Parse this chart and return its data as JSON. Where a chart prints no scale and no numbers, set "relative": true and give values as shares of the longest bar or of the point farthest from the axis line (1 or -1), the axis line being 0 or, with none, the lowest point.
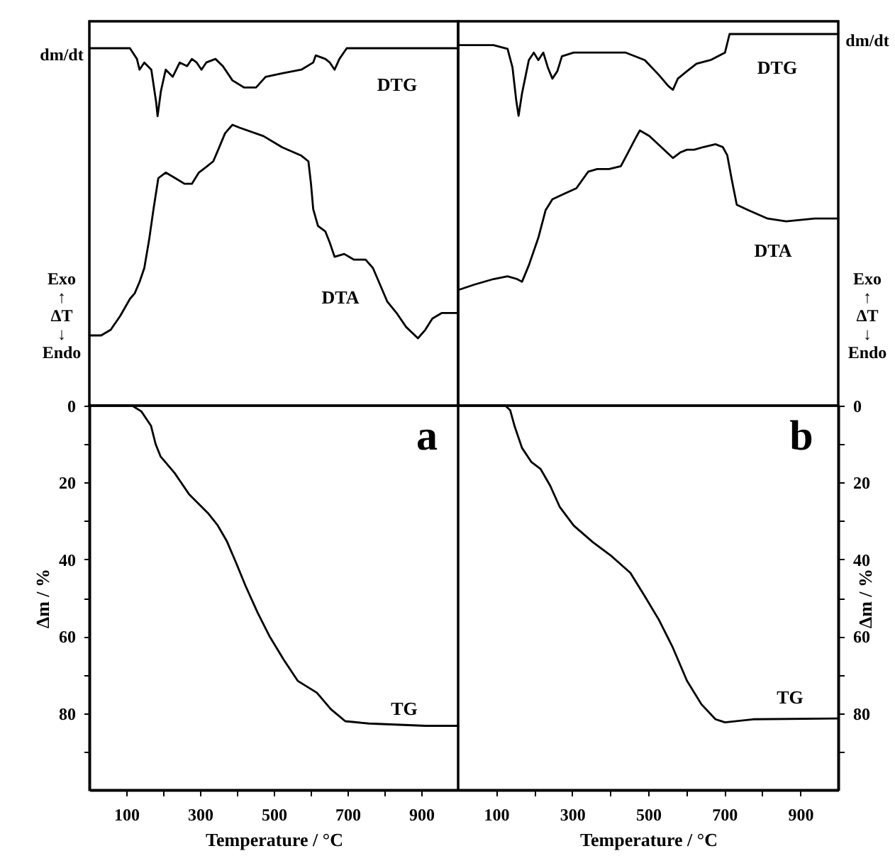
{
  "chart_data": [
    {
      "type": "line",
      "relative": true,
      "xlim": [
        0,
        1000
      ],
      "tick_labels": false,
      "ylabel": "dm/dt",
      "series": [
        {
          "name": "DTG",
          "color": "#000000",
          "x": [
            0,
            110,
            129,
            136,
            149,
            168,
            181,
            185,
            194,
            207,
            226,
            245,
            265,
            278,
            291,
            304,
            317,
            342,
            362,
            388,
            420,
            452,
            478,
            523,
            575,
            607,
            614,
            640,
            652,
            665,
            678,
            698,
            1000
          ],
          "values": [
            1,
            1,
            0.97,
            0.94,
            0.96,
            0.94,
            0.85,
            0.81,
            0.88,
            0.94,
            0.92,
            0.96,
            0.95,
            0.97,
            0.96,
            0.94,
            0.96,
            0.97,
            0.95,
            0.91,
            0.89,
            0.89,
            0.92,
            0.93,
            0.94,
            0.96,
            0.98,
            0.97,
            0.96,
            0.94,
            0.97,
            1,
            1
          ]
        }
      ]
    },
    {
      "type": "line",
      "relative": true,
      "xlim": [
        0,
        1000
      ],
      "tick_labels": false,
      "ylabel": "Exo ↑ ΔT ↓ Endo",
      "series": [
        {
          "name": "DTA",
          "color": "#000000",
          "x": [
            0,
            32,
            58,
            84,
            110,
            123,
            136,
            149,
            162,
            174,
            187,
            207,
            233,
            258,
            278,
            297,
            317,
            336,
            349,
            368,
            388,
            407,
            472,
            523,
            575,
            594,
            601,
            607,
            620,
            640,
            652,
            665,
            691,
            717,
            749,
            769,
            782,
            808,
            833,
            859,
            891,
            911,
            930,
            956,
            1000
          ],
          "values": [
            0.25,
            0.25,
            0.27,
            0.32,
            0.38,
            0.4,
            0.44,
            0.49,
            0.59,
            0.7,
            0.81,
            0.83,
            0.81,
            0.79,
            0.79,
            0.83,
            0.85,
            0.87,
            0.91,
            0.97,
            1,
            0.99,
            0.96,
            0.92,
            0.89,
            0.87,
            0.79,
            0.7,
            0.64,
            0.62,
            0.58,
            0.53,
            0.54,
            0.52,
            0.52,
            0.49,
            0.45,
            0.37,
            0.33,
            0.28,
            0.24,
            0.27,
            0.31,
            0.33,
            0.33
          ]
        }
      ]
    },
    {
      "type": "line",
      "xlim": [
        0,
        1000
      ],
      "xticks": [
        100,
        {
          "value": 200,
          "label": null
        },
        300,
        {
          "value": 400,
          "label": null
        },
        500,
        {
          "value": 600,
          "label": null
        },
        700,
        {
          "value": 800,
          "label": null
        },
        900
      ],
      "ylim": [
        100,
        0
      ],
      "yticks": [
        0,
        {
          "value": 10,
          "label": null
        },
        20,
        {
          "value": 30,
          "label": null
        },
        40,
        {
          "value": 50,
          "label": null
        },
        60,
        {
          "value": 70,
          "label": null
        },
        80,
        {
          "value": 90,
          "label": null
        }
      ],
      "xlabel": "Temperature / °C",
      "ylabel": "Δm / %",
      "annotations": [
        "a"
      ],
      "series": [
        {
          "name": "TG",
          "color": "#000000",
          "x": [
            0,
            116,
            141,
            167,
            180,
            193,
            231,
            270,
            321,
            347,
            373,
            398,
            424,
            456,
            488,
            527,
            565,
            617,
            655,
            694,
            758,
            912,
            1000
          ],
          "values": [
            0,
            0,
            1.5,
            5.2,
            10.1,
            13.2,
            17.5,
            23,
            27.9,
            31,
            35.3,
            40.9,
            47,
            53.8,
            59.9,
            66.1,
            71.6,
            74.7,
            79,
            82.1,
            82.7,
            83.3,
            83.3
          ]
        }
      ]
    },
    {
      "type": "line",
      "relative": true,
      "xlim": [
        0,
        1000
      ],
      "tick_labels": false,
      "ylabel": "dm/dt",
      "series": [
        {
          "name": "DTG",
          "color": "#000000",
          "x": [
            0,
            93,
            130,
            143,
            153,
            159,
            168,
            178,
            186,
            199,
            211,
            224,
            236,
            248,
            261,
            273,
            304,
            366,
            441,
            491,
            528,
            553,
            565,
            578,
            602,
            627,
            664,
            702,
            714,
            739,
            838,
            1000
          ],
          "values": [
            0.97,
            0.97,
            0.96,
            0.91,
            0.82,
            0.78,
            0.84,
            0.89,
            0.93,
            0.95,
            0.93,
            0.95,
            0.91,
            0.88,
            0.9,
            0.94,
            0.95,
            0.95,
            0.95,
            0.93,
            0.89,
            0.86,
            0.85,
            0.88,
            0.9,
            0.92,
            0.93,
            0.95,
            1,
            1,
            1,
            1
          ]
        }
      ]
    },
    {
      "type": "line",
      "relative": true,
      "xlim": [
        0,
        1000
      ],
      "tick_labels": false,
      "ylabel": "Exo ↑ ΔT ↓ Endo",
      "series": [
        {
          "name": "DTA",
          "color": "#000000",
          "x": [
            0,
            43,
            93,
            130,
            155,
            168,
            186,
            211,
            230,
            248,
            279,
            311,
            342,
            366,
            397,
            428,
            447,
            466,
            478,
            503,
            534,
            565,
            584,
            602,
            621,
            646,
            677,
            696,
            708,
            720,
            733,
            764,
            814,
            863,
            938,
            1000
          ],
          "values": [
            0.42,
            0.44,
            0.46,
            0.47,
            0.46,
            0.45,
            0.51,
            0.61,
            0.71,
            0.75,
            0.77,
            0.79,
            0.85,
            0.86,
            0.86,
            0.87,
            0.92,
            0.97,
            1,
            0.98,
            0.94,
            0.9,
            0.92,
            0.93,
            0.93,
            0.94,
            0.95,
            0.94,
            0.91,
            0.82,
            0.73,
            0.71,
            0.68,
            0.67,
            0.68,
            0.68
          ]
        }
      ]
    },
    {
      "type": "line",
      "xlim": [
        0,
        1000
      ],
      "xticks": [
        100,
        {
          "value": 200,
          "label": null
        },
        300,
        {
          "value": 400,
          "label": null
        },
        500,
        {
          "value": 600,
          "label": null
        },
        700,
        {
          "value": 800,
          "label": null
        },
        900
      ],
      "ylim": [
        100,
        0
      ],
      "yticks": [
        0,
        {
          "value": 10,
          "label": null
        },
        20,
        {
          "value": 30,
          "label": null
        },
        40,
        {
          "value": 50,
          "label": null
        },
        60,
        {
          "value": 70,
          "label": null
        },
        80,
        {
          "value": 90,
          "label": null
        }
      ],
      "xlabel": "Temperature / °C",
      "ylabel": "Δm / %",
      "annotations": [
        "b"
      ],
      "series": [
        {
          "name": "TG",
          "color": "#000000",
          "x": [
            0,
            124,
            137,
            149,
            168,
            193,
            217,
            242,
            267,
            304,
            354,
            404,
            453,
            491,
            528,
            565,
            602,
            640,
            677,
            702,
            776,
            1000
          ],
          "values": [
            0,
            0,
            1.2,
            5.5,
            11,
            14.7,
            16.5,
            20.8,
            26.3,
            31.2,
            35.5,
            39.2,
            43.5,
            49.6,
            55.7,
            63,
            71.6,
            77.7,
            81.6,
            82.4,
            81.6,
            81.4
          ]
        }
      ]
    }
  ]
}
